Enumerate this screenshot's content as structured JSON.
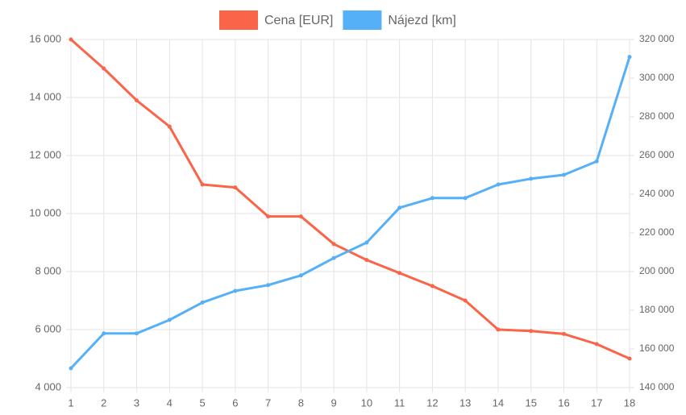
{
  "chart_data": {
    "type": "line",
    "categories": [
      "1",
      "2",
      "3",
      "4",
      "5",
      "6",
      "7",
      "8",
      "9",
      "10",
      "11",
      "12",
      "13",
      "14",
      "15",
      "16",
      "17",
      "18"
    ],
    "series": [
      {
        "name": "Cena [EUR]",
        "color": "#fa6448",
        "values": [
          16000,
          15000,
          13900,
          13000,
          11000,
          10900,
          9900,
          9900,
          8950,
          8400,
          7950,
          7500,
          7000,
          6000,
          5950,
          5850,
          5500,
          5000
        ]
      },
      {
        "name": "Nájezd [km]",
        "color": "#55b0f7",
        "axis": "y2",
        "values": [
          150000,
          168000,
          168000,
          175000,
          184000,
          190000,
          193000,
          198000,
          207000,
          215000,
          233000,
          238000,
          238000,
          245000,
          248000,
          250000,
          257000,
          311000
        ]
      }
    ],
    "ylim": [
      4000,
      16000
    ],
    "yticks": [
      {
        "value": 4000,
        "label": "4 000"
      },
      {
        "value": 6000,
        "label": "6 000"
      },
      {
        "value": 8000,
        "label": "8 000"
      },
      {
        "value": 10000,
        "label": "10 000"
      },
      {
        "value": 12000,
        "label": "12 000"
      },
      {
        "value": 14000,
        "label": "14 000"
      },
      {
        "value": 16000,
        "label": "16 000"
      }
    ],
    "y2lim": [
      140000,
      320000
    ],
    "y2ticks": [
      {
        "value": 140000,
        "label": "140 000"
      },
      {
        "value": 160000,
        "label": "160 000"
      },
      {
        "value": 180000,
        "label": "180 000"
      },
      {
        "value": 200000,
        "label": "200 000"
      },
      {
        "value": 220000,
        "label": "220 000"
      },
      {
        "value": 240000,
        "label": "240 000"
      },
      {
        "value": 260000,
        "label": "260 000"
      },
      {
        "value": 280000,
        "label": "280 000"
      },
      {
        "value": 300000,
        "label": "300 000"
      },
      {
        "value": 320000,
        "label": "320 000"
      }
    ],
    "grid": true,
    "legend": "top"
  }
}
